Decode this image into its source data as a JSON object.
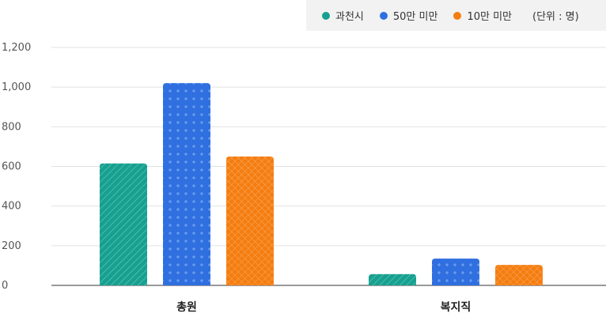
{
  "legend": {
    "unit": "(단위 : 명)"
  },
  "chart_data": {
    "type": "bar",
    "categories": [
      "총원",
      "복지직"
    ],
    "series": [
      {
        "name": "과천시",
        "color": "#17a08f",
        "pattern": "diagonal-lines",
        "values": [
          615,
          57
        ]
      },
      {
        "name": "50만 미만",
        "color": "#2f6fe0",
        "pattern": "plus-dots",
        "values": [
          1020,
          135
        ]
      },
      {
        "name": "10만 미만",
        "color": "#f57d10",
        "pattern": "crosshatch",
        "values": [
          650,
          103
        ]
      }
    ],
    "yticks": [
      "1,200",
      "1,000",
      "800",
      "600",
      "400",
      "200",
      "0"
    ],
    "ylim": [
      0,
      1200
    ],
    "grid": true,
    "legend_position": "top-right"
  }
}
